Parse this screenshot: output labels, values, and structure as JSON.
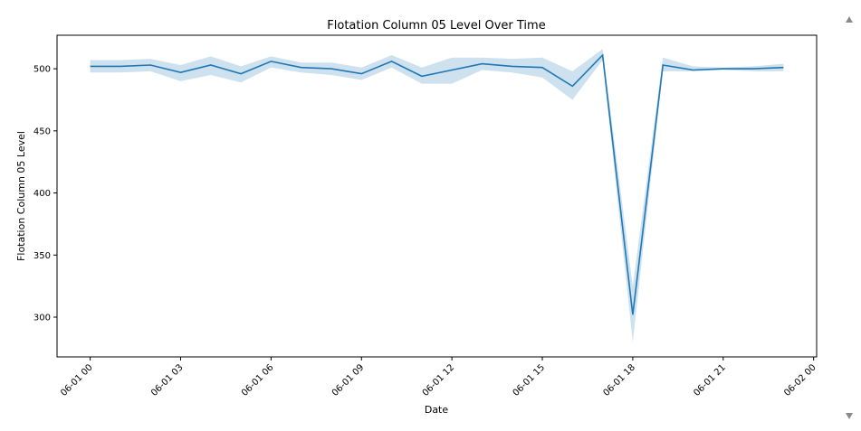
{
  "chart_data": {
    "type": "line",
    "title": "Flotation Column 05 Level Over Time",
    "xlabel": "Date",
    "ylabel": "Flotation Column 05 Level",
    "x": [
      "06-01 00",
      "06-01 01",
      "06-01 02",
      "06-01 03",
      "06-01 04",
      "06-01 05",
      "06-01 06",
      "06-01 07",
      "06-01 08",
      "06-01 09",
      "06-01 10",
      "06-01 11",
      "06-01 12",
      "06-01 13",
      "06-01 14",
      "06-01 15",
      "06-01 16",
      "06-01 17",
      "06-01 18",
      "06-01 19",
      "06-01 20",
      "06-01 21",
      "06-01 22",
      "06-01 23"
    ],
    "series": [
      {
        "values": [
          502,
          502,
          503,
          497,
          503,
          496,
          506,
          501,
          500,
          496,
          506,
          494,
          499,
          504,
          502,
          501,
          486,
          511,
          302,
          503,
          499,
          500,
          500,
          501
        ],
        "lower": [
          497,
          497,
          498,
          490,
          495,
          489,
          501,
          497,
          495,
          491,
          501,
          488,
          488,
          499,
          497,
          493,
          475,
          507,
          280,
          498,
          498,
          499,
          498,
          498
        ],
        "upper": [
          507,
          507,
          508,
          503,
          510,
          502,
          510,
          505,
          505,
          501,
          511,
          501,
          509,
          509,
          508,
          509,
          498,
          516,
          325,
          509,
          502,
          501,
          502,
          504
        ]
      }
    ],
    "xticks": [
      "06-01 00",
      "06-01 03",
      "06-01 06",
      "06-01 09",
      "06-01 12",
      "06-01 15",
      "06-01 18",
      "06-01 21",
      "06-02 00"
    ],
    "yticks": [
      300,
      350,
      400,
      450,
      500
    ],
    "xlim_hours": [
      -1.1,
      24.1
    ],
    "ylim": [
      268,
      527
    ],
    "grid": false,
    "colors": {
      "line": "#1f77b4",
      "band": "#1f77b4"
    }
  }
}
